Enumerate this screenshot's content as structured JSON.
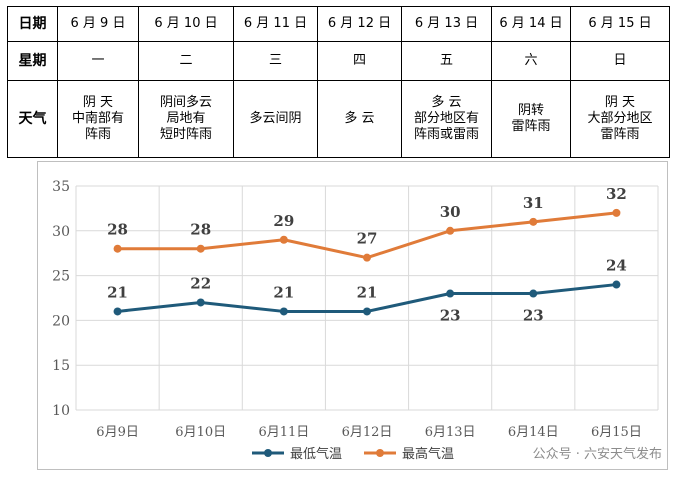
{
  "table": {
    "headers": {
      "date": "日期",
      "weekday": "星期",
      "weather": "天气"
    },
    "days": [
      {
        "date": "6 月 9 日",
        "weekday": "一",
        "weather": [
          "阴 天",
          "中南部有",
          "阵雨"
        ]
      },
      {
        "date": "6 月 10 日",
        "weekday": "二",
        "weather": [
          "阴间多云",
          "局地有",
          "短时阵雨"
        ]
      },
      {
        "date": "6 月 11 日",
        "weekday": "三",
        "weather": [
          "多云间阴"
        ]
      },
      {
        "date": "6 月 12 日",
        "weekday": "四",
        "weather": [
          "多 云"
        ]
      },
      {
        "date": "6 月 13 日",
        "weekday": "五",
        "weather": [
          "多 云",
          "部分地区有",
          "阵雨或雷雨"
        ]
      },
      {
        "date": "6 月 14 日",
        "weekday": "六",
        "weather": [
          "阴转",
          "雷阵雨"
        ]
      },
      {
        "date": "6 月 15 日",
        "weekday": "日",
        "weather": [
          "阴 天",
          "大部分地区",
          "雷阵雨"
        ]
      }
    ]
  },
  "chart_data": {
    "type": "line",
    "categories": [
      "6月9日",
      "6月10日",
      "6月11日",
      "6月12日",
      "6月13日",
      "6月14日",
      "6月15日"
    ],
    "series": [
      {
        "name": "最低气温",
        "values": [
          21,
          22,
          21,
          21,
          23,
          23,
          24
        ],
        "color": "#1f5a7a",
        "label_position": [
          "above",
          "above",
          "above",
          "above",
          "below",
          "below",
          "above"
        ]
      },
      {
        "name": "最高气温",
        "values": [
          28,
          28,
          29,
          27,
          30,
          31,
          32
        ],
        "color": "#e07b39",
        "label_position": [
          "above",
          "above",
          "above",
          "above",
          "above",
          "above",
          "above"
        ]
      }
    ],
    "ylim": [
      10,
      35
    ],
    "yticks": [
      10,
      15,
      20,
      25,
      30,
      35
    ],
    "grid": {
      "horizontal": true,
      "vertical": true
    },
    "legend_position": "bottom",
    "title": "",
    "xlabel": "",
    "ylabel": ""
  },
  "watermark": "公众号 · 六安天气发布"
}
